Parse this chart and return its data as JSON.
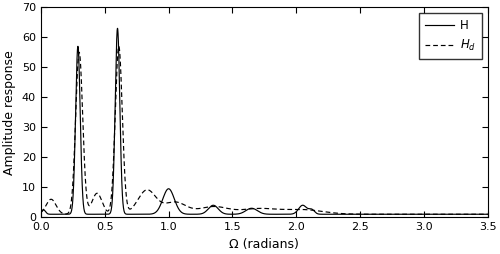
{
  "xlabel": "Ω (radians)",
  "ylabel": "Amplitude response",
  "xlim": [
    0,
    3.5
  ],
  "ylim": [
    0,
    70
  ],
  "xticks": [
    0,
    0.5,
    1.0,
    1.5,
    2.0,
    2.5,
    3.0,
    3.5
  ],
  "yticks": [
    0,
    10,
    20,
    30,
    40,
    50,
    60,
    70
  ],
  "legend_H": "H",
  "legend_Hd": "H_d",
  "H_color": "#000000",
  "Hd_color": "#000000",
  "background": "#ffffff",
  "figsize": [
    5.0,
    2.54
  ],
  "dpi": 100
}
